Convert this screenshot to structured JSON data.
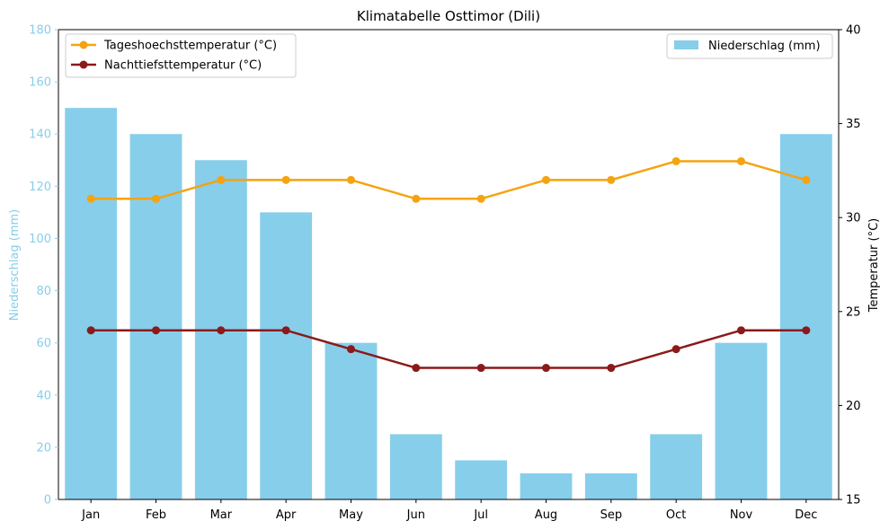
{
  "chart_data": {
    "type": "bar",
    "title": "Klimatabelle Osttimor (Dili)",
    "categories": [
      "Jan",
      "Feb",
      "Mar",
      "Apr",
      "May",
      "Jun",
      "Jul",
      "Aug",
      "Sep",
      "Oct",
      "Nov",
      "Dec"
    ],
    "bar_series": {
      "name": "Niederschlag (mm)",
      "color": "#87ceeb",
      "values": [
        150,
        140,
        130,
        110,
        60,
        25,
        15,
        10,
        10,
        25,
        60,
        140
      ]
    },
    "line_series": [
      {
        "name": "Tageshoechsttemperatur (°C)",
        "color": "#f5a30f",
        "values": [
          31,
          31,
          32,
          32,
          32,
          31,
          31,
          32,
          32,
          33,
          33,
          32
        ]
      },
      {
        "name": "Nachttiefsttemperatur (°C)",
        "color": "#8b1a1a",
        "values": [
          24,
          24,
          24,
          24,
          23,
          22,
          22,
          22,
          22,
          23,
          24,
          24
        ]
      }
    ],
    "y_left": {
      "label": "Niederschlag (mm)",
      "range": [
        0,
        180
      ],
      "ticks": [
        "0",
        "20",
        "40",
        "60",
        "80",
        "100",
        "120",
        "140",
        "160",
        "180"
      ],
      "color": "#87ceeb"
    },
    "y_right": {
      "label": "Temperatur (°C)",
      "range": [
        15,
        40
      ],
      "ticks": [
        "15",
        "20",
        "25",
        "30",
        "35",
        "40"
      ],
      "color": "#000000"
    },
    "legend_lines_position": "top-left",
    "legend_bars_position": "top-right",
    "grid": false
  }
}
